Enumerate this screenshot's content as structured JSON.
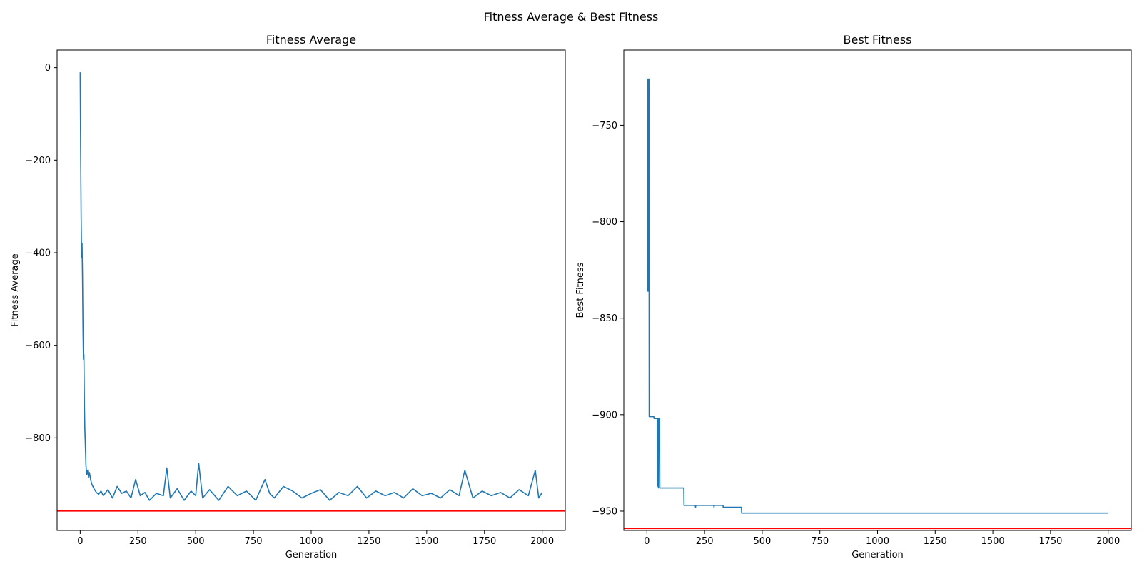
{
  "suptitle": "Fitness Average & Best Fitness",
  "chart_data": [
    {
      "type": "line",
      "title": "Fitness Average",
      "xlabel": "Generation",
      "ylabel": "Fitness Average",
      "xlim": [
        -100,
        2100
      ],
      "ylim": [
        -1000,
        38
      ],
      "xticks": [
        0,
        250,
        500,
        750,
        1000,
        1250,
        1500,
        1750,
        2000
      ],
      "yticks": [
        0,
        -200,
        -400,
        -600,
        -800
      ],
      "line_color": "#1f77b4",
      "reference_line": {
        "y": -958,
        "color": "#ff0000"
      },
      "series": [
        {
          "x": [
            0,
            2,
            4,
            6,
            8,
            10,
            12,
            14,
            16,
            18,
            20,
            22,
            25,
            28,
            32,
            36,
            40,
            45,
            50,
            60,
            70,
            80,
            90,
            100,
            120,
            140,
            160,
            180,
            200,
            220,
            240,
            260,
            280,
            300,
            330,
            360,
            375,
            390,
            420,
            450,
            480,
            500,
            513,
            530,
            560,
            600,
            640,
            680,
            720,
            760,
            800,
            820,
            840,
            880,
            920,
            960,
            1000,
            1040,
            1080,
            1120,
            1160,
            1200,
            1240,
            1280,
            1320,
            1360,
            1400,
            1440,
            1480,
            1520,
            1560,
            1600,
            1640,
            1665,
            1700,
            1740,
            1780,
            1820,
            1860,
            1900,
            1940,
            1970,
            1985,
            2000
          ],
          "values": [
            -10,
            -180,
            -320,
            -410,
            -380,
            -450,
            -560,
            -630,
            -620,
            -720,
            -780,
            -810,
            -860,
            -880,
            -870,
            -885,
            -875,
            -890,
            -900,
            -910,
            -918,
            -922,
            -915,
            -925,
            -912,
            -930,
            -905,
            -920,
            -915,
            -930,
            -890,
            -925,
            -918,
            -935,
            -920,
            -925,
            -865,
            -930,
            -910,
            -935,
            -915,
            -925,
            -855,
            -930,
            -912,
            -935,
            -905,
            -925,
            -915,
            -935,
            -890,
            -920,
            -930,
            -905,
            -915,
            -930,
            -920,
            -912,
            -935,
            -918,
            -925,
            -905,
            -930,
            -915,
            -925,
            -918,
            -930,
            -910,
            -925,
            -920,
            -930,
            -912,
            -925,
            -870,
            -930,
            -915,
            -925,
            -918,
            -930,
            -912,
            -925,
            -870,
            -930,
            -918
          ]
        }
      ]
    },
    {
      "type": "line",
      "title": "Best Fitness",
      "xlabel": "Generation",
      "ylabel": "Best Fitness",
      "xlim": [
        -100,
        2100
      ],
      "ylim": [
        -960,
        -711
      ],
      "xticks": [
        0,
        250,
        500,
        750,
        1000,
        1250,
        1500,
        1750,
        2000
      ],
      "yticks": [
        -750,
        -800,
        -850,
        -900,
        -950
      ],
      "line_color": "#1f77b4",
      "reference_line": {
        "y": -959,
        "color": "#ff0000"
      },
      "series": [
        {
          "x": [
            0,
            3,
            4,
            6,
            7,
            8,
            9,
            10,
            11,
            25,
            26,
            30,
            31,
            45,
            46,
            48,
            49,
            50,
            51,
            55,
            56,
            160,
            161,
            200,
            210,
            211,
            212,
            215,
            216,
            280,
            290,
            291,
            292,
            300,
            301,
            330,
            331,
            410,
            411,
            2000
          ],
          "values": [
            -836,
            -836,
            -726,
            -726,
            -836,
            -726,
            -726,
            -901,
            -901,
            -901,
            -901,
            -901,
            -902,
            -902,
            -937,
            -902,
            -902,
            -938,
            -902,
            -902,
            -938,
            -938,
            -947,
            -947,
            -947,
            -948,
            -947,
            -947,
            -947,
            -947,
            -947,
            -948,
            -947,
            -947,
            -947,
            -947,
            -948,
            -948,
            -951,
            -951
          ]
        }
      ]
    }
  ]
}
